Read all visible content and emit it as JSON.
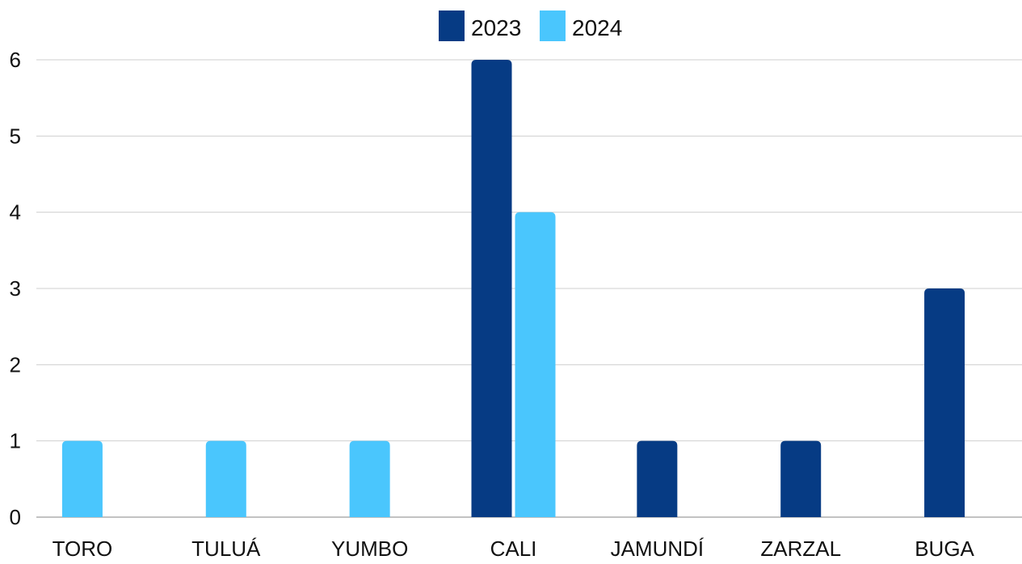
{
  "chart_data": {
    "type": "bar",
    "categories": [
      "TORO",
      "TULUÁ",
      "YUMBO",
      "CALI",
      "JAMUNDÍ",
      "ZARZAL",
      "BUGA"
    ],
    "series": [
      {
        "name": "2023",
        "color": "#063b84",
        "values": [
          0,
          0,
          0,
          6,
          1,
          1,
          3
        ]
      },
      {
        "name": "2024",
        "color": "#4ac6fd",
        "values": [
          1,
          1,
          1,
          4,
          0,
          0,
          0
        ]
      }
    ],
    "yticks": [
      0,
      1,
      2,
      3,
      4,
      5,
      6
    ],
    "ylim": [
      0,
      6
    ],
    "grid": true,
    "legend_position": "top-center",
    "title": "",
    "xlabel": "",
    "ylabel": ""
  }
}
